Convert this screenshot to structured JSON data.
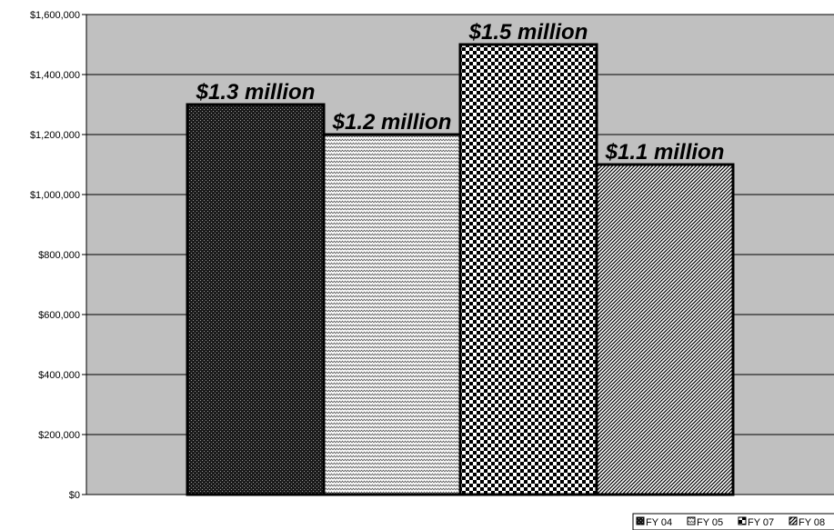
{
  "chart_data": {
    "type": "bar",
    "categories": [
      "FY 04",
      "FY 05",
      "FY 07",
      "FY 08"
    ],
    "values": [
      1300000,
      1200000,
      1500000,
      1100000
    ],
    "data_labels": [
      "$1.3 million",
      "$1.2 million",
      "$1.5 million",
      "$1.1 million"
    ],
    "y_ticks": [
      0,
      200000,
      400000,
      600000,
      800000,
      1000000,
      1200000,
      1400000,
      1600000
    ],
    "y_tick_labels": [
      "$0",
      "$200,000",
      "$400,000",
      "$600,000",
      "$800,000",
      "$1,000,000",
      "$1,200,000",
      "$1,400,000",
      "$1,600,000"
    ],
    "ylim": [
      0,
      1600000
    ],
    "grid": true,
    "legend_position": "bottom-right",
    "plot_background": "#c0c0c0",
    "bar_patterns": [
      "dense-dots",
      "zigzag",
      "checker",
      "diagonal-stripes"
    ]
  }
}
